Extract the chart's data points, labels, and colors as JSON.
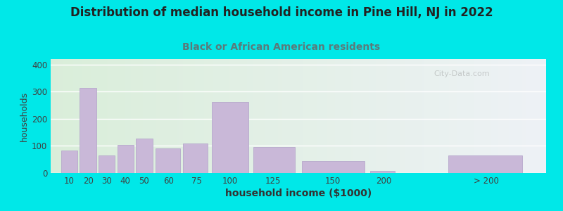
{
  "title": "Distribution of median household income in Pine Hill, NJ in 2022",
  "subtitle": "Black or African American residents",
  "xlabel": "household income ($1000)",
  "ylabel": "households",
  "bar_color": "#c9b8d8",
  "bar_edgecolor": "#b0a0c8",
  "background_outer": "#00e8e8",
  "title_color": "#222222",
  "subtitle_color": "#5a7a7a",
  "title_fontsize": 12,
  "subtitle_fontsize": 10,
  "ylabel_fontsize": 9,
  "xlabel_fontsize": 10,
  "values": [
    83,
    315,
    65,
    105,
    128,
    90,
    110,
    262,
    96,
    44,
    7,
    65
  ],
  "bar_lefts": [
    10,
    20,
    30,
    40,
    50,
    60,
    75,
    90,
    112,
    137,
    175,
    215
  ],
  "bar_widths": [
    10,
    10,
    10,
    10,
    10,
    15,
    15,
    22,
    25,
    38,
    15,
    45
  ],
  "xtick_labels": [
    "10",
    "20",
    "30",
    "40",
    "50",
    "60",
    "75",
    "100",
    "125",
    "150",
    "200",
    "> 200"
  ],
  "xtick_positions": [
    15,
    25,
    35,
    45,
    55,
    68,
    83,
    101,
    124,
    156,
    183,
    238
  ],
  "ylim": [
    0,
    420
  ],
  "yticks": [
    0,
    100,
    200,
    300,
    400
  ],
  "xlim": [
    5,
    270
  ],
  "watermark": "City-Data.com"
}
